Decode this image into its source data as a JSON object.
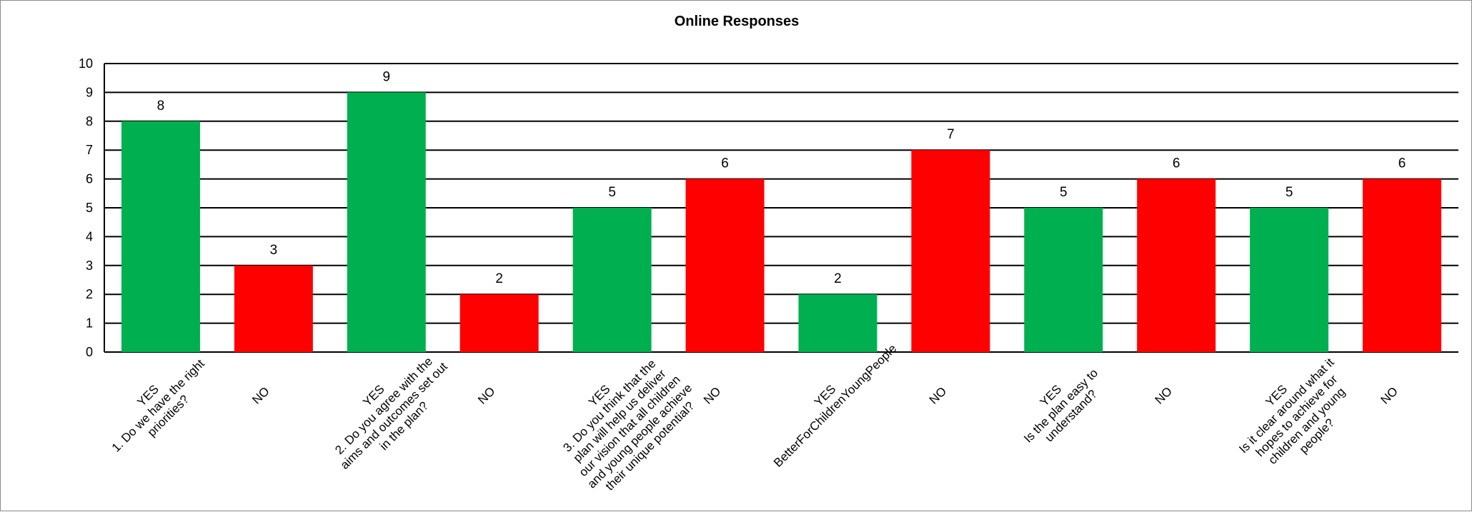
{
  "chart_data": {
    "type": "bar",
    "title": "Online Responses",
    "xlabel": "",
    "ylabel": "",
    "ylim": [
      0,
      10
    ],
    "yticks": [
      "0",
      "1",
      "2",
      "3",
      "4",
      "5",
      "6",
      "7",
      "8",
      "9",
      "10"
    ],
    "grid": true,
    "legend": "none",
    "colors": {
      "yes": "#00b050",
      "no": "#ff0000",
      "grid": "#000000"
    },
    "categories": [
      [
        "YES",
        "1. Do we have the right",
        "priorities?"
      ],
      [
        "NO"
      ],
      [
        "YES",
        "2. Do you agree with the",
        "aims and outcomes set out",
        "in the plan?"
      ],
      [
        "NO"
      ],
      [
        "YES",
        "3. Do you think that the",
        "plan will help us deliver",
        "our vision that all children",
        "and young people achieve",
        "their unique potential?"
      ],
      [
        "NO"
      ],
      [
        "YES",
        "BetterForChildrenYoungPeople"
      ],
      [
        "NO"
      ],
      [
        "YES",
        "Is the plan easy to",
        "understand?"
      ],
      [
        "NO"
      ],
      [
        "YES",
        "Is it clear around what it",
        "hopes to achieve for",
        "children and young",
        "people?"
      ],
      [
        "NO"
      ]
    ],
    "answer": [
      "yes",
      "no",
      "yes",
      "no",
      "yes",
      "no",
      "yes",
      "no",
      "yes",
      "no",
      "yes",
      "no"
    ],
    "values": [
      8,
      3,
      9,
      2,
      5,
      6,
      2,
      7,
      5,
      6,
      5,
      6
    ],
    "data_labels": [
      "8",
      "3",
      "9",
      "2",
      "5",
      "6",
      "2",
      "7",
      "5",
      "6",
      "5",
      "6"
    ]
  }
}
